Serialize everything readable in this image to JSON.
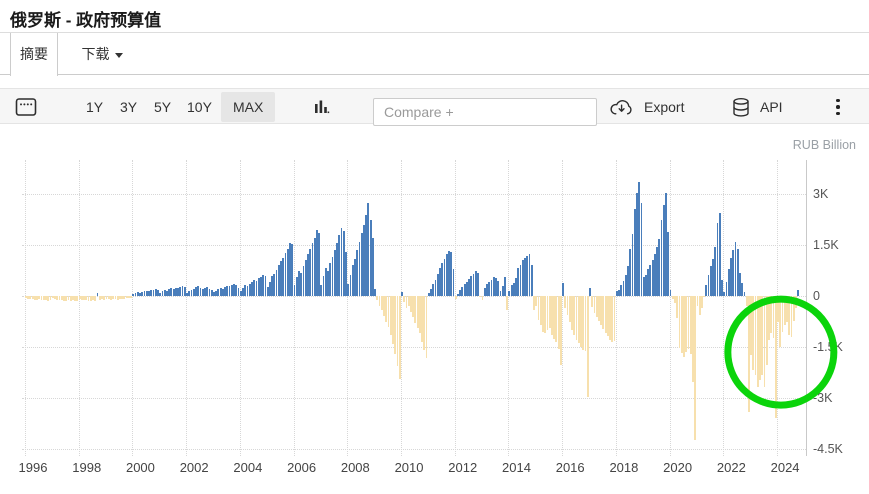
{
  "header": {
    "title": "俄罗斯 - 政府预算值",
    "tab_summary": "摘要",
    "tab_download": "下载"
  },
  "toolbar": {
    "ranges": {
      "r1": "1Y",
      "r2": "3Y",
      "r3": "5Y",
      "r4": "10Y",
      "rmax": "MAX"
    },
    "active_range": "MAX",
    "compare_placeholder": "Compare +",
    "export_label": "Export",
    "api_label": "API"
  },
  "chart_data": {
    "type": "bar",
    "title": "俄罗斯 - 政府预算值",
    "unit_label": "RUB Billion",
    "frequency": "monthly",
    "legend": "none",
    "grid": "dotted",
    "axis_side": "right",
    "ylim": [
      -4800,
      3800
    ],
    "yticks": [
      {
        "label": "3K",
        "value": 3000
      },
      {
        "label": "1.5K",
        "value": 1500
      },
      {
        "label": "0",
        "value": 0
      },
      {
        "label": "-1.5K",
        "value": -1500
      },
      {
        "label": "-3K",
        "value": -3000
      },
      {
        "label": "-4.5K",
        "value": -4500
      }
    ],
    "xticks": [
      "1996",
      "1998",
      "2000",
      "2002",
      "2004",
      "2006",
      "2008",
      "2010",
      "2012",
      "2014",
      "2016",
      "2018",
      "2020",
      "2022",
      "2024"
    ],
    "colors": {
      "positive": "#4a7ebb",
      "negative": "#f7e0ad"
    },
    "series": [
      {
        "year": 1996,
        "values": [
          -60,
          -80,
          -100,
          -90,
          -110,
          -120,
          -100,
          -130,
          -110,
          -120,
          -140,
          -130
        ]
      },
      {
        "year": 1997,
        "values": [
          -70,
          -90,
          -110,
          -130,
          -120,
          -140,
          -150,
          -130,
          -140,
          -120,
          -150,
          -160
        ]
      },
      {
        "year": 1998,
        "values": [
          -100,
          -120,
          -130,
          -110,
          -140,
          -150,
          -130,
          -140,
          80,
          -120,
          -100,
          -110
        ]
      },
      {
        "year": 1999,
        "values": [
          -90,
          -100,
          -110,
          -100,
          -90,
          -110,
          -100,
          -90,
          -80,
          -70,
          -60,
          -50
        ]
      },
      {
        "year": 2000,
        "values": [
          60,
          90,
          110,
          100,
          130,
          150,
          140,
          160,
          180,
          170,
          200,
          190
        ]
      },
      {
        "year": 2001,
        "values": [
          90,
          140,
          180,
          160,
          200,
          230,
          210,
          250,
          240,
          260,
          290,
          270
        ]
      },
      {
        "year": 2002,
        "values": [
          100,
          150,
          180,
          220,
          260,
          300,
          240,
          200,
          230,
          260,
          220,
          180
        ]
      },
      {
        "year": 2003,
        "values": [
          120,
          160,
          200,
          240,
          210,
          260,
          300,
          280,
          320,
          350,
          330,
          230
        ]
      },
      {
        "year": 2004,
        "values": [
          150,
          230,
          310,
          280,
          360,
          420,
          470,
          440,
          520,
          560,
          620,
          590
        ]
      },
      {
        "year": 2005,
        "values": [
          260,
          420,
          580,
          640,
          760,
          900,
          1030,
          1110,
          1260,
          1380,
          1560,
          1540
        ]
      },
      {
        "year": 2006,
        "values": [
          310,
          560,
          740,
          690,
          880,
          1060,
          1230,
          1390,
          1570,
          1720,
          1940,
          1860
        ]
      },
      {
        "year": 2007,
        "values": [
          320,
          590,
          810,
          740,
          980,
          1140,
          1350,
          1560,
          1780,
          2000,
          1900,
          1280
        ]
      },
      {
        "year": 2008,
        "values": [
          340,
          620,
          900,
          1100,
          1350,
          1600,
          1850,
          2100,
          2380,
          2740,
          2250,
          1700
        ]
      },
      {
        "year": 2009,
        "values": [
          220,
          -120,
          -280,
          -420,
          -580,
          -760,
          -920,
          -1150,
          -1400,
          -1700,
          -2050,
          -2430
        ]
      },
      {
        "year": 2010,
        "values": [
          110,
          -190,
          -340,
          -280,
          -480,
          -620,
          -780,
          -950,
          -1100,
          -1350,
          -1600,
          -1820
        ]
      },
      {
        "year": 2011,
        "values": [
          90,
          220,
          350,
          480,
          640,
          820,
          960,
          1100,
          1240,
          1320,
          1280,
          790
        ]
      },
      {
        "year": 2012,
        "values": [
          -90,
          60,
          180,
          260,
          340,
          420,
          510,
          590,
          660,
          730,
          680,
          -40
        ]
      },
      {
        "year": 2013,
        "values": [
          -110,
          230,
          340,
          420,
          480,
          560,
          520,
          440,
          160,
          300,
          560,
          -400
        ]
      },
      {
        "year": 2014,
        "values": [
          160,
          330,
          380,
          520,
          830,
          920,
          1060,
          1120,
          1180,
          1230,
          900,
          -410
        ]
      },
      {
        "year": 2015,
        "values": [
          -280,
          -700,
          -850,
          -1050,
          -1090,
          -1000,
          -950,
          -1150,
          -1250,
          -1350,
          -1550,
          -2030
        ]
      },
      {
        "year": 2016,
        "values": [
          390,
          -360,
          -550,
          -760,
          -1000,
          -1150,
          -1280,
          -1390,
          -1500,
          -1580,
          -1620,
          -2970
        ]
      },
      {
        "year": 2017,
        "values": [
          250,
          -330,
          -490,
          -620,
          -740,
          -860,
          -980,
          -1090,
          -1180,
          -1290,
          -1350,
          -1330
        ]
      },
      {
        "year": 2018,
        "values": [
          150,
          190,
          320,
          440,
          620,
          880,
          1380,
          1830,
          2560,
          3030,
          3360,
          2740
        ]
      },
      {
        "year": 2019,
        "values": [
          550,
          620,
          780,
          920,
          1060,
          1240,
          1450,
          1690,
          2250,
          2680,
          3030,
          1880
        ]
      },
      {
        "year": 2020,
        "values": [
          175,
          -90,
          -200,
          -650,
          -1530,
          -1680,
          -1790,
          -1650,
          -1550,
          -1700,
          -2530,
          -4240
        ]
      },
      {
        "year": 2021,
        "values": [
          -300,
          -560,
          -350,
          -30,
          310,
          630,
          890,
          1080,
          1440,
          2140,
          2440,
          470
        ]
      },
      {
        "year": 2022,
        "values": [
          125,
          415,
          800,
          1110,
          1350,
          1590,
          1370,
          680,
          380,
          130,
          -280,
          -3410
        ]
      },
      {
        "year": 2023,
        "values": [
          -1740,
          -2180,
          -2320,
          -2670,
          -2470,
          -2320,
          -2670,
          -2030,
          -1290,
          -1090,
          -1240,
          -3590
        ]
      },
      {
        "year": 2024,
        "values": [
          -760,
          -1500,
          -1060,
          -855,
          -760,
          -1160,
          -1210,
          -735,
          -350,
          170
        ]
      }
    ],
    "annotation": {
      "shape": "circle",
      "color": "#0bd40b",
      "center_year": 2024.14,
      "center_value": -1650,
      "radius_px": 53,
      "stroke_px": 7
    }
  }
}
